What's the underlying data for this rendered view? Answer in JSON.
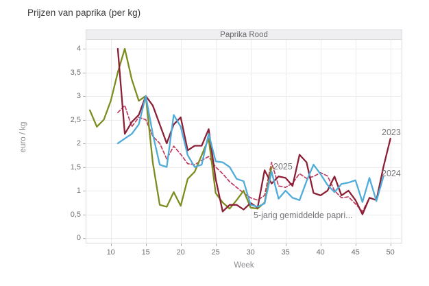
{
  "page": {
    "title": "Prijzen van paprika (per kg)"
  },
  "panel": {
    "title": "Paprika Rood"
  },
  "colors": {
    "series_2023": "#8b1f36",
    "series_2024": "#4fabd9",
    "series_2025": "#7d8c1e",
    "series_avg": "#bf3a5f",
    "grid": "#ebebee",
    "tick": "#b4b4b8",
    "panel_header_bg": "#efeff2",
    "panel_border": "#d9d9de"
  },
  "chart_data": {
    "type": "line",
    "title": "Paprika Rood",
    "xlabel": "Week",
    "ylabel": "euro / kg",
    "xlim": [
      6.4,
      51.8
    ],
    "ylim": [
      0,
      4
    ],
    "grid": true,
    "legend": "inline-labels",
    "x_ticks": [
      10,
      15,
      20,
      25,
      30,
      35,
      40,
      45,
      50
    ],
    "y_ticks": [
      0,
      0.5,
      1,
      1.5,
      2,
      2.5,
      3,
      3.5,
      4
    ],
    "y_tick_labels": [
      "0",
      "0,5",
      "1",
      "1,5",
      "2",
      "2,5",
      "3",
      "3,5",
      "4"
    ],
    "series": [
      {
        "name": "5-jarig gemiddelde papri...",
        "style": "dashed",
        "color": "#bf3a5f",
        "x": [
          11,
          12,
          13,
          14,
          15,
          16,
          17,
          18,
          19,
          20,
          21,
          22,
          23,
          24,
          25,
          26,
          27,
          28,
          29,
          30,
          31,
          32,
          33,
          34,
          35,
          36,
          37,
          38,
          39,
          40,
          41,
          42,
          43,
          44,
          45,
          46,
          47,
          48
        ],
        "values": [
          2.65,
          2.8,
          2.35,
          2.55,
          2.5,
          2.15,
          2.0,
          1.67,
          1.94,
          1.77,
          1.57,
          1.55,
          1.64,
          1.72,
          1.5,
          1.36,
          1.19,
          1.07,
          0.95,
          0.85,
          0.8,
          0.9,
          1.6,
          1.1,
          1.07,
          1.16,
          1.36,
          1.26,
          1.3,
          1.38,
          1.31,
          1.0,
          0.85,
          0.87,
          0.72,
          0.56,
          0.85,
          0.8
        ]
      },
      {
        "name": "2025",
        "style": "solid",
        "color": "#7d8c1e",
        "x": [
          7,
          8,
          9,
          10,
          11,
          12,
          13,
          14,
          15,
          16,
          17,
          18,
          19,
          20,
          21,
          22,
          23,
          24,
          25,
          26,
          27,
          28,
          29,
          30,
          31,
          32,
          33
        ],
        "values": [
          2.7,
          2.35,
          2.5,
          2.9,
          3.5,
          4.0,
          3.35,
          2.9,
          3.0,
          1.6,
          0.7,
          0.66,
          0.97,
          0.68,
          1.25,
          1.4,
          1.75,
          2.1,
          0.95,
          0.75,
          0.62,
          0.8,
          1.0,
          0.64,
          0.62,
          0.75,
          1.5
        ]
      },
      {
        "name": "2023",
        "style": "solid",
        "color": "#8b1f36",
        "x": [
          11,
          12,
          13,
          14,
          15,
          16,
          17,
          18,
          19,
          20,
          21,
          22,
          23,
          24,
          25,
          26,
          27,
          28,
          29,
          30,
          31,
          32,
          33,
          34,
          35,
          36,
          37,
          38,
          39,
          40,
          41,
          42,
          43,
          44,
          45,
          46,
          47,
          48,
          49,
          50
        ],
        "values": [
          4.0,
          2.2,
          2.45,
          2.6,
          3.0,
          2.8,
          2.4,
          2.0,
          2.4,
          2.55,
          1.85,
          1.95,
          1.95,
          2.3,
          1.25,
          0.56,
          0.7,
          0.7,
          0.6,
          0.74,
          0.64,
          1.43,
          1.15,
          1.3,
          1.27,
          1.1,
          1.76,
          1.6,
          0.95,
          0.9,
          1.0,
          1.3,
          0.9,
          1.0,
          0.8,
          0.5,
          0.85,
          0.8,
          1.5,
          2.1
        ]
      },
      {
        "name": "2024",
        "style": "solid",
        "color": "#4fabd9",
        "x": [
          11,
          12,
          13,
          14,
          15,
          16,
          17,
          18,
          19,
          20,
          21,
          22,
          23,
          24,
          25,
          26,
          27,
          28,
          29,
          30,
          31,
          32,
          33,
          34,
          35,
          36,
          37,
          38,
          39,
          40,
          41,
          42,
          43,
          44,
          45,
          46,
          47,
          48,
          49
        ],
        "values": [
          2.0,
          2.1,
          2.2,
          2.4,
          3.0,
          2.2,
          1.55,
          1.5,
          2.6,
          2.35,
          1.75,
          1.5,
          1.55,
          2.2,
          1.62,
          1.6,
          1.5,
          1.25,
          1.2,
          0.7,
          0.66,
          0.73,
          1.4,
          0.83,
          1.0,
          0.85,
          0.8,
          1.2,
          1.55,
          1.35,
          1.12,
          0.97,
          1.14,
          1.17,
          1.22,
          0.76,
          1.27,
          0.78,
          1.3
        ]
      }
    ],
    "annotations": [
      {
        "text": "2023",
        "week": 48.8,
        "value": 2.22
      },
      {
        "text": "2024",
        "week": 48.8,
        "value": 1.35
      },
      {
        "text": "2025",
        "week": 33.3,
        "value": 1.5
      },
      {
        "text": "5-jarig gemiddelde papri...",
        "week": 30.4,
        "value": 0.47
      }
    ]
  }
}
